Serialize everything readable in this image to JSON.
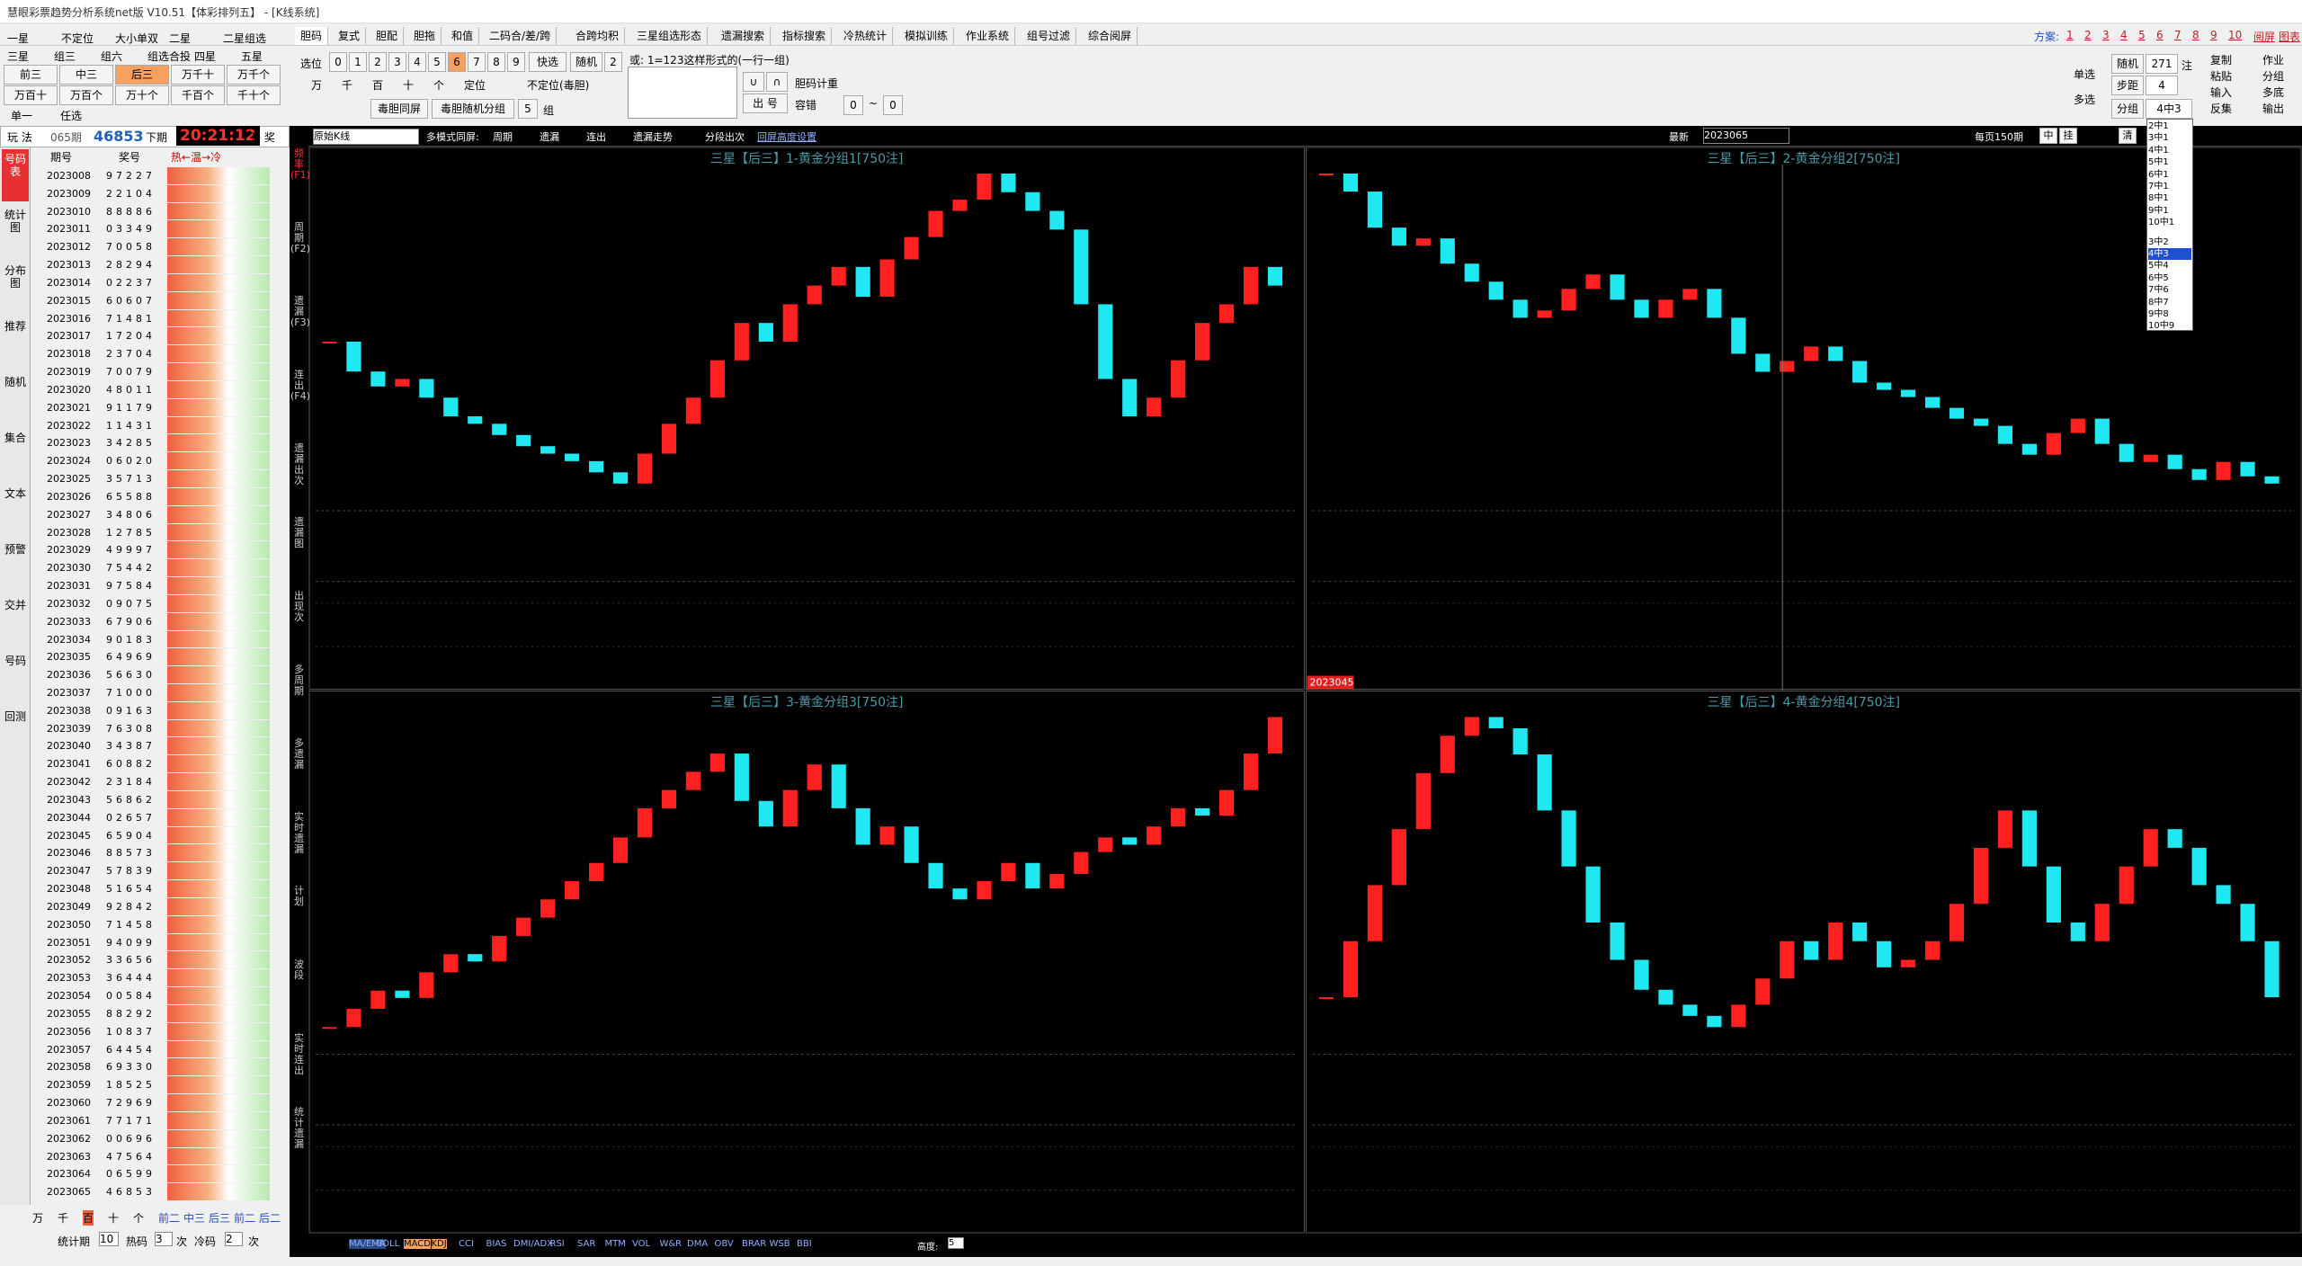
{
  "window": {
    "title": "慧眼彩票趋势分析系统net版 V10.51【体彩排列五】 - [K线系统]"
  },
  "menu": [
    "胆码",
    "复式",
    "胆配",
    "胆拖",
    "和值",
    "二码合/差/跨",
    "合跨均积",
    "三星组选形态",
    "遗漏搜索",
    "指标搜索",
    "冷热统计",
    "模拟训练",
    "作业系统",
    "组号过滤",
    "综合阅屏"
  ],
  "schemes": {
    "label": "方案:",
    "items": [
      "1",
      "2",
      "3",
      "4",
      "5",
      "6",
      "7",
      "8",
      "9",
      "10",
      "阅屏",
      "图表"
    ]
  },
  "play_options": {
    "row1": [
      "一星",
      "不定位",
      "大小单双",
      "二星",
      "二星组选"
    ],
    "row2": [
      "三星",
      "组三",
      "组六",
      "组选合投",
      "四星",
      "五星"
    ],
    "buttons1": [
      "前三",
      "中三",
      "后三",
      "万千十",
      "万千个"
    ],
    "buttons2": [
      "万百十",
      "万百个",
      "万十个",
      "千百个",
      "千十个"
    ],
    "mode": [
      "单一",
      "任选"
    ]
  },
  "status": {
    "label": "玩 法",
    "issue": "065期",
    "number": "46853",
    "next_label": "下期",
    "time": "20:21:12",
    "award": "开 奖"
  },
  "table": {
    "headers": [
      "期号",
      "奖号",
      "热←温→冷"
    ],
    "rows": [
      [
        "2023008",
        "97227"
      ],
      [
        "2023009",
        "22104"
      ],
      [
        "2023010",
        "88886"
      ],
      [
        "2023011",
        "03349"
      ],
      [
        "2023012",
        "70058"
      ],
      [
        "2023013",
        "28294"
      ],
      [
        "2023014",
        "02237"
      ],
      [
        "2023015",
        "60607"
      ],
      [
        "2023016",
        "71481"
      ],
      [
        "2023017",
        "17204"
      ],
      [
        "2023018",
        "23704"
      ],
      [
        "2023019",
        "70079"
      ],
      [
        "2023020",
        "48011"
      ],
      [
        "2023021",
        "91179"
      ],
      [
        "2023022",
        "11431"
      ],
      [
        "2023023",
        "34285"
      ],
      [
        "2023024",
        "06020"
      ],
      [
        "2023025",
        "35713"
      ],
      [
        "2023026",
        "65588"
      ],
      [
        "2023027",
        "34806"
      ],
      [
        "2023028",
        "12785"
      ],
      [
        "2023029",
        "49997"
      ],
      [
        "2023030",
        "75442"
      ],
      [
        "2023031",
        "97584"
      ],
      [
        "2023032",
        "09075"
      ],
      [
        "2023033",
        "67906"
      ],
      [
        "2023034",
        "90183"
      ],
      [
        "2023035",
        "64969"
      ],
      [
        "2023036",
        "56630"
      ],
      [
        "2023037",
        "71000"
      ],
      [
        "2023038",
        "09163"
      ],
      [
        "2023039",
        "76308"
      ],
      [
        "2023040",
        "34387"
      ],
      [
        "2023041",
        "60882"
      ],
      [
        "2023042",
        "23184"
      ],
      [
        "2023043",
        "56862"
      ],
      [
        "2023044",
        "02657"
      ],
      [
        "2023045",
        "65904"
      ],
      [
        "2023046",
        "88573"
      ],
      [
        "2023047",
        "57839"
      ],
      [
        "2023048",
        "51654"
      ],
      [
        "2023049",
        "92842"
      ],
      [
        "2023050",
        "71458"
      ],
      [
        "2023051",
        "94099"
      ],
      [
        "2023052",
        "33656"
      ],
      [
        "2023053",
        "36444"
      ],
      [
        "2023054",
        "00584"
      ],
      [
        "2023055",
        "88292"
      ],
      [
        "2023056",
        "10837"
      ],
      [
        "2023057",
        "64454"
      ],
      [
        "2023058",
        "69330"
      ],
      [
        "2023059",
        "18525"
      ],
      [
        "2023060",
        "72969"
      ],
      [
        "2023061",
        "77171"
      ],
      [
        "2023062",
        "00696"
      ],
      [
        "2023063",
        "47564"
      ],
      [
        "2023064",
        "06599"
      ],
      [
        "2023065",
        "46853"
      ]
    ]
  },
  "left_bottom": {
    "tabs": [
      "万",
      "千",
      "百",
      "十",
      "个",
      "前二",
      "中三",
      "后三",
      "前二",
      "后二"
    ],
    "stat_label": "统计期",
    "stat_value": "10",
    "hot_label": "热码",
    "hot_value": "3",
    "times": "次",
    "cold_label": "冷码",
    "cold_value": "2"
  },
  "side_tabs": [
    "号码表",
    "统计图",
    "分布图",
    "推荐",
    "随机",
    "集合",
    "文本",
    "预警",
    "交并",
    "号码",
    "回测"
  ],
  "vertical_tabs": [
    "频率(F1)",
    "周期(F2)",
    "遗漏(F3)",
    "连出(F4)",
    "遗漏出次",
    "遗漏图",
    "出现次",
    "多周期",
    "多遗漏",
    "实时遗漏",
    "计划",
    "波段",
    "实时连出",
    "统计遗漏"
  ],
  "selector": {
    "label": "选位",
    "digits": [
      "0",
      "1",
      "2",
      "3",
      "4",
      "5",
      "6",
      "7",
      "8",
      "9"
    ],
    "quick": "快选",
    "random": "随机",
    "count": "2",
    "positions": [
      "万",
      "千",
      "百",
      "十",
      "个",
      "定位",
      "不定位(毒胆)"
    ],
    "poison_same": "毒胆同屏",
    "poison_random": "毒胆随机分组",
    "group_count": "5",
    "group": "组",
    "hint": "或: 1=123这样形式的(一行一组)",
    "union": "∪",
    "intersect": "∩",
    "output": "出 号",
    "weight": "胆码计重",
    "tolerance": "容错",
    "tol_from": "0",
    "tilde": "~",
    "tol_to": "0"
  },
  "right_controls": {
    "single": "单选",
    "multi": "多选",
    "random": "随机",
    "count": "271",
    "unit": "注",
    "step": "步距",
    "step_value": "4",
    "group": "分组",
    "group_value": "4中3",
    "actions": [
      "复制",
      "作业",
      "粘贴",
      "分组",
      "输入",
      "多底",
      "反集",
      "输出"
    ]
  },
  "dropdown": [
    "2中1",
    "3中1",
    "4中1",
    "5中1",
    "6中1",
    "7中1",
    "8中1",
    "9中1",
    "10中1",
    "3中2",
    "4中3",
    "5中4",
    "6中5",
    "7中6",
    "8中7",
    "9中8",
    "10中9"
  ],
  "chart_toolbar": {
    "mode": "原始K线",
    "multi": "多模式同屏:",
    "options": [
      "周期",
      "遗漏",
      "连出",
      "遗漏走势",
      "分段出次"
    ],
    "height_setting": "回屏高度设置",
    "latest": "最新",
    "period": "2023065",
    "per_page": "每页150期",
    "buttons": [
      "中",
      "挂"
    ],
    "clear": "清"
  },
  "cursor_label": "2023045",
  "chart_data": [
    {
      "type": "candlestick",
      "title": "三星【后三】1-黄金分组1[750注]",
      "values": [
        50,
        42,
        38,
        40,
        35,
        30,
        28,
        25,
        22,
        20,
        18,
        15,
        12,
        20,
        28,
        35,
        45,
        55,
        50,
        60,
        65,
        70,
        62,
        72,
        78,
        85,
        88,
        95,
        90,
        85,
        80,
        60,
        40,
        30,
        35,
        45,
        55,
        60,
        70,
        65
      ]
    },
    {
      "type": "candlestick",
      "title": "三星【后三】2-黄金分组2[750注]",
      "values": [
        90,
        85,
        75,
        70,
        72,
        65,
        60,
        55,
        50,
        52,
        58,
        62,
        55,
        50,
        55,
        58,
        50,
        40,
        35,
        38,
        42,
        38,
        32,
        30,
        28,
        25,
        22,
        20,
        15,
        12,
        18,
        22,
        15,
        10,
        12,
        8,
        5,
        10,
        6,
        4
      ]
    },
    {
      "type": "candlestick",
      "title": "三星【后三】3-黄金分组3[750注]",
      "values": [
        10,
        15,
        20,
        18,
        25,
        30,
        28,
        35,
        40,
        45,
        50,
        55,
        62,
        70,
        75,
        80,
        85,
        72,
        65,
        75,
        82,
        70,
        60,
        65,
        55,
        48,
        45,
        50,
        55,
        48,
        52,
        58,
        62,
        60,
        65,
        70,
        68,
        75,
        85,
        95
      ]
    },
    {
      "type": "candlestick",
      "title": "三星【后三】4-黄金分组4[750注]",
      "values": [
        20,
        35,
        50,
        65,
        80,
        90,
        95,
        92,
        85,
        70,
        55,
        40,
        30,
        22,
        18,
        15,
        12,
        18,
        25,
        35,
        30,
        40,
        35,
        28,
        30,
        35,
        45,
        60,
        70,
        55,
        40,
        35,
        45,
        55,
        65,
        60,
        50,
        45,
        35,
        20
      ]
    }
  ],
  "bottom_bar": {
    "indicators": [
      "MA/EMA",
      "BOLL",
      "MACD",
      "KDJ",
      "CCI",
      "BIAS",
      "DMI/ADX",
      "RSI",
      "SAR",
      "MTM",
      "VOL",
      "W&R",
      "DMA",
      "OBV",
      "BRAR",
      "WSB",
      "BBI"
    ],
    "height_label": "高度:",
    "height_value": "5"
  }
}
